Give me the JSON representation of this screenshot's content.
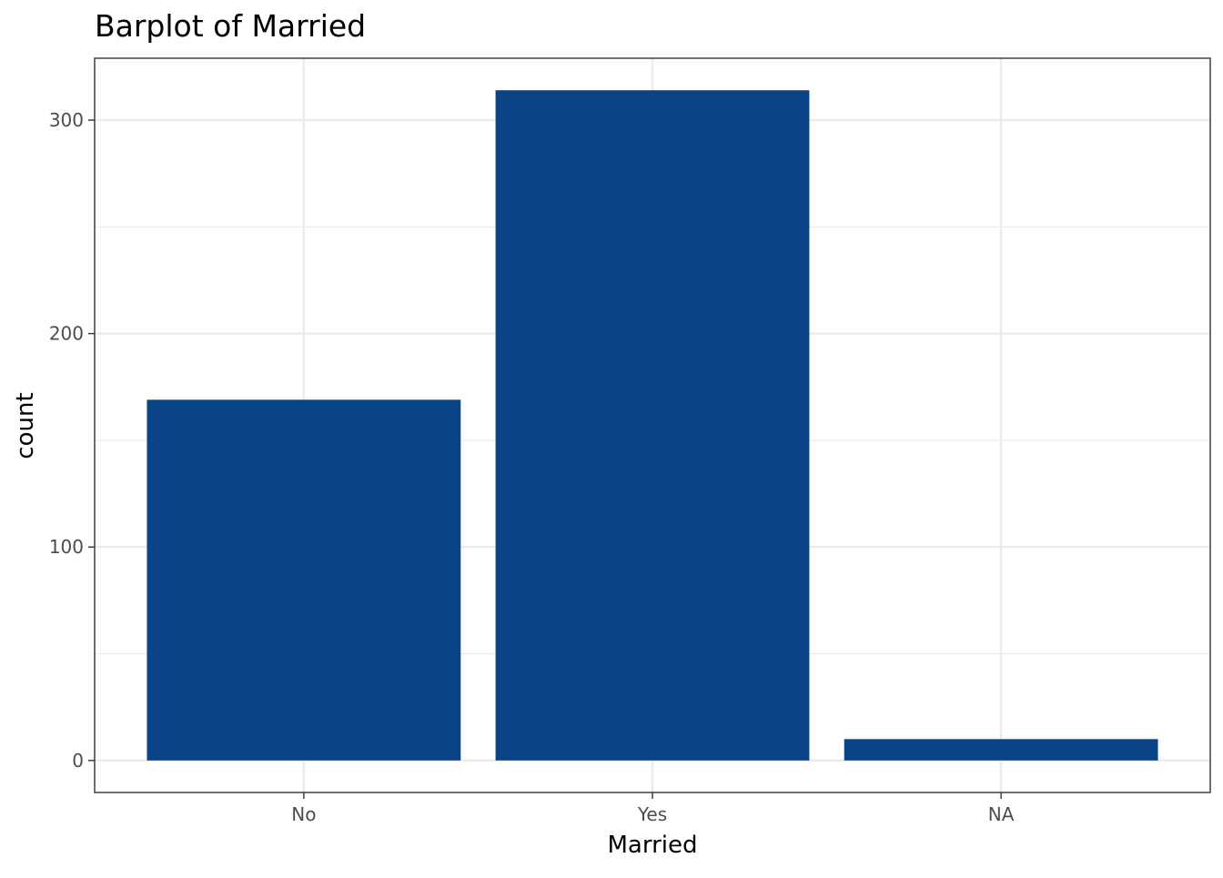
{
  "chart_data": {
    "type": "bar",
    "title": "Barplot of Married",
    "xlabel": "Married",
    "ylabel": "count",
    "categories": [
      "No",
      "Yes",
      "NA"
    ],
    "values": [
      169,
      314,
      10
    ],
    "ylim": [
      -15,
      329
    ],
    "yticks": [
      0,
      100,
      200,
      300
    ],
    "grid": true,
    "bar_color": "#0b4387",
    "grid_color": "#ebebeb",
    "axis_text_color": "#4d4d4d",
    "panel_border_color": "#333333"
  }
}
